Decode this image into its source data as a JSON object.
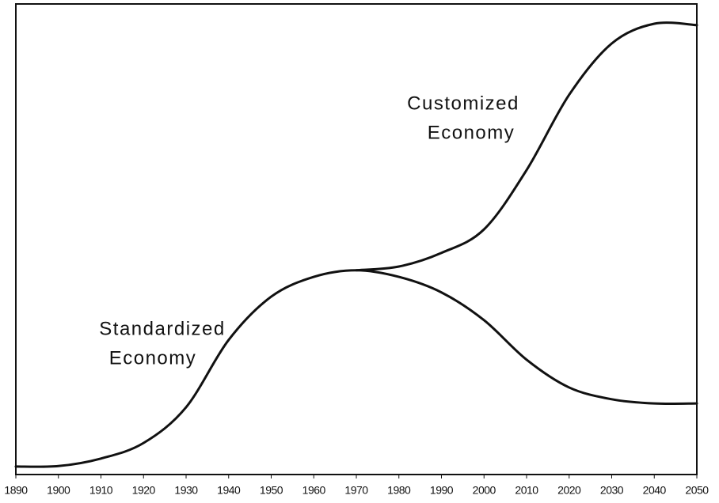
{
  "chart_data": {
    "type": "line",
    "x": [
      1890,
      1900,
      1910,
      1920,
      1930,
      1940,
      1950,
      1960,
      1970,
      1980,
      1990,
      2000,
      2010,
      2020,
      2030,
      2040,
      2050
    ],
    "series": [
      {
        "name": "Standardized Economy",
        "color": "#111111",
        "values": [
          1.7,
          1.8,
          3.4,
          6.7,
          14.3,
          28.6,
          37.8,
          42.0,
          43.4,
          42.0,
          38.7,
          32.8,
          24.4,
          18.5,
          16.0,
          15.1,
          15.1
        ]
      },
      {
        "name": "Customized Economy",
        "color": "#111111",
        "values": [
          null,
          null,
          null,
          null,
          null,
          null,
          null,
          null,
          43.4,
          44.2,
          47.1,
          52.1,
          64.7,
          80.7,
          91.6,
          95.8,
          95.5
        ]
      }
    ],
    "annotations": [
      {
        "lines": [
          "Customized",
          "Economy"
        ]
      },
      {
        "lines": [
          "Standardized",
          "Economy"
        ]
      }
    ],
    "xlim": [
      1890,
      2050
    ],
    "xticks": [
      1890,
      1900,
      1910,
      1920,
      1930,
      1940,
      1950,
      1960,
      1970,
      1980,
      1990,
      2000,
      2010,
      2020,
      2030,
      2040,
      2050
    ],
    "ylim": [
      0,
      100
    ]
  }
}
